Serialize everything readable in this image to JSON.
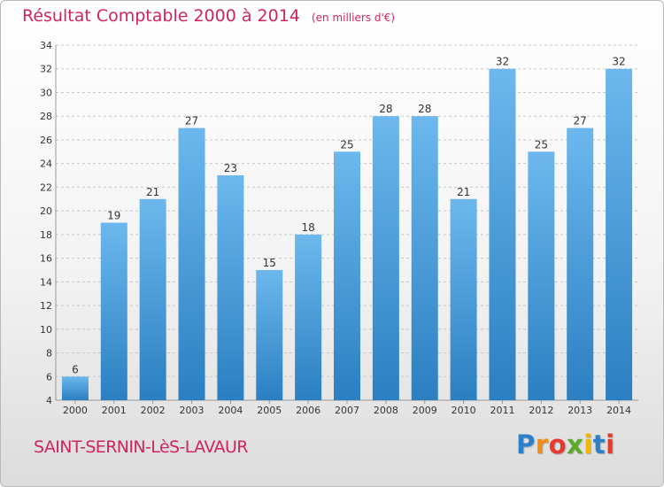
{
  "header": {
    "title": "Résultat Comptable 2000 à 2014",
    "subtitle": "(en milliers d'€)"
  },
  "footer": {
    "place": "SAINT-SERNIN-LèS-LAVAUR",
    "logo": [
      "P",
      "r",
      "o",
      "x",
      "i",
      "t",
      "i"
    ],
    "logo_colors": [
      "#2c7fc9",
      "#f28c13",
      "#e63a2f",
      "#5aaa2a",
      "#f2b705",
      "#2c7fc9",
      "#e63a2f"
    ]
  },
  "colors": {
    "bar_top": "#6cb8ee",
    "bar_bottom": "#2b7fc1",
    "grid": "#c8c8c8",
    "axis_text": "#333333"
  },
  "chart_data": {
    "type": "bar",
    "categories": [
      "2000",
      "2001",
      "2002",
      "2003",
      "2004",
      "2005",
      "2006",
      "2007",
      "2008",
      "2009",
      "2010",
      "2011",
      "2012",
      "2013",
      "2014"
    ],
    "values": [
      6,
      19,
      21,
      27,
      23,
      15,
      18,
      25,
      28,
      28,
      21,
      32,
      25,
      27,
      32
    ],
    "ylim": [
      4,
      34
    ],
    "yticks": [
      4,
      6,
      8,
      10,
      12,
      14,
      16,
      18,
      20,
      22,
      24,
      26,
      28,
      30,
      32,
      34
    ],
    "grid": true,
    "data_labels": true
  }
}
